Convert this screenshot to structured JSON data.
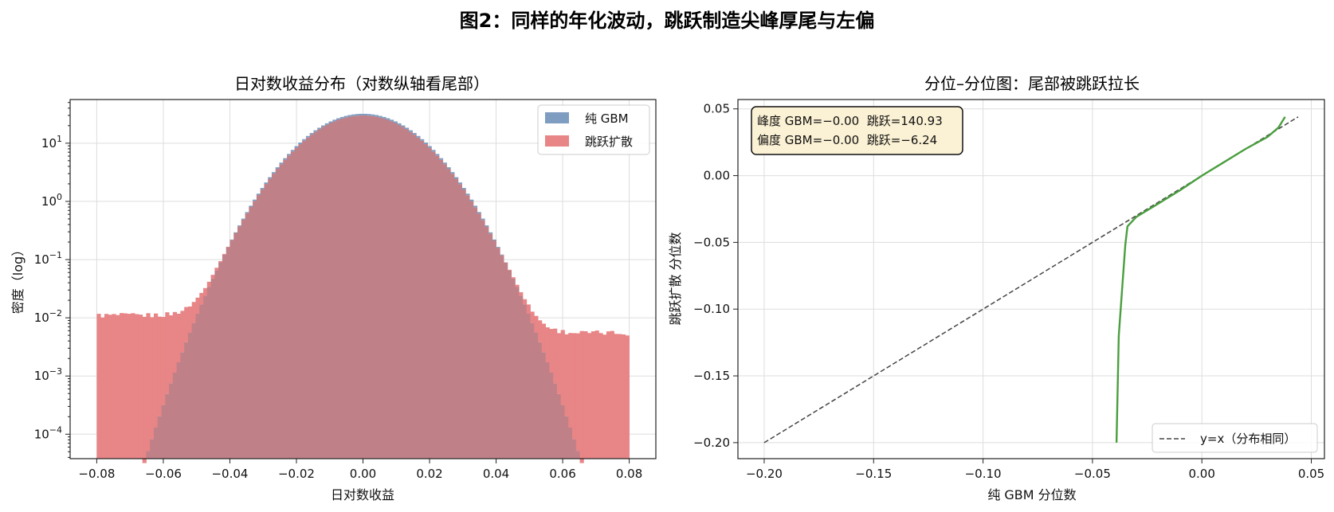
{
  "figure": {
    "title": "图2：同样的年化波动，跳跃制造尖峰厚尾与左偏"
  },
  "colors": {
    "gbm_bar": "#7f9dc0",
    "jump_bar": "#e88586",
    "overlap_bar": "#c08088",
    "qq_line": "#4a9e3f",
    "ref_line": "#444444",
    "stats_box_bg": "#fbf1d4",
    "grid": "#dddddd"
  },
  "chart_data": [
    {
      "type": "bar",
      "title": "日对数收益分布（对数纵轴看尾部）",
      "xlabel": "日对数收益",
      "ylabel": "密度（log）",
      "xlim": [
        -0.088,
        0.088
      ],
      "ylim_log10": [
        -4.42,
        1.75
      ],
      "yscale": "log",
      "grid": true,
      "legend_position": "top-right",
      "xticks": [
        -0.08,
        -0.06,
        -0.04,
        -0.02,
        0.0,
        0.02,
        0.04,
        0.06,
        0.08
      ],
      "xtick_labels": [
        "−0.08",
        "−0.06",
        "−0.04",
        "−0.02",
        "0.00",
        "0.02",
        "0.04",
        "0.06",
        "0.08"
      ],
      "yticks_log10": [
        1,
        0,
        -1,
        -2,
        -3,
        -4
      ],
      "ytick_bases": [
        "10",
        "10",
        "10",
        "10",
        "10",
        "10"
      ],
      "ytick_exps": [
        "1",
        "0",
        "−1",
        "−2",
        "−3",
        "−4"
      ],
      "bin_range": [
        -0.08,
        0.08
      ],
      "bin_count": 140,
      "series": [
        {
          "name": "纯 GBM",
          "distribution": "normal",
          "peak_density": 32,
          "std": 0.0125,
          "min_visible_density": 3e-05
        },
        {
          "name": "跳跃扩散",
          "distribution": "normal plus uniform tail",
          "peak_density": 30,
          "std": 0.0125,
          "tail_density_left": 0.011,
          "tail_density_right": 0.0055
        }
      ]
    },
    {
      "type": "line",
      "title": "分位–分位图：尾部被跳跃拉长",
      "xlabel": "纯 GBM 分位数",
      "ylabel": "跳跃扩散 分位数",
      "xlim": [
        -0.212,
        0.056
      ],
      "ylim": [
        -0.212,
        0.057
      ],
      "grid": true,
      "legend_position": "bottom-right",
      "xticks": [
        -0.2,
        -0.15,
        -0.1,
        -0.05,
        0.0,
        0.05
      ],
      "xtick_labels": [
        "−0.20",
        "−0.15",
        "−0.10",
        "−0.05",
        "0.00",
        "0.05"
      ],
      "yticks": [
        0.05,
        0.0,
        -0.05,
        -0.1,
        -0.15,
        -0.2
      ],
      "ytick_labels": [
        "0.05",
        "0.00",
        "−0.05",
        "−0.10",
        "−0.15",
        "−0.20"
      ],
      "series": [
        {
          "name": "y=x（分布相同）",
          "style": "dashed",
          "x": [
            -0.2,
            0.044
          ],
          "y": [
            -0.2,
            0.044
          ]
        },
        {
          "name": "",
          "style": "solid",
          "x": [
            -0.039,
            -0.038,
            -0.035,
            -0.034,
            -0.03,
            -0.02,
            -0.01,
            0.0,
            0.01,
            0.02,
            0.03,
            0.035,
            0.038
          ],
          "y": [
            -0.2,
            -0.12,
            -0.052,
            -0.038,
            -0.031,
            -0.021,
            -0.011,
            0.0,
            0.01,
            0.02,
            0.029,
            0.036,
            0.044
          ]
        }
      ],
      "annotation_lines": [
        "峰度 GBM=−0.00  跳跃=140.93",
        "偏度 GBM=−0.00  跳跃=−6.24"
      ]
    }
  ]
}
